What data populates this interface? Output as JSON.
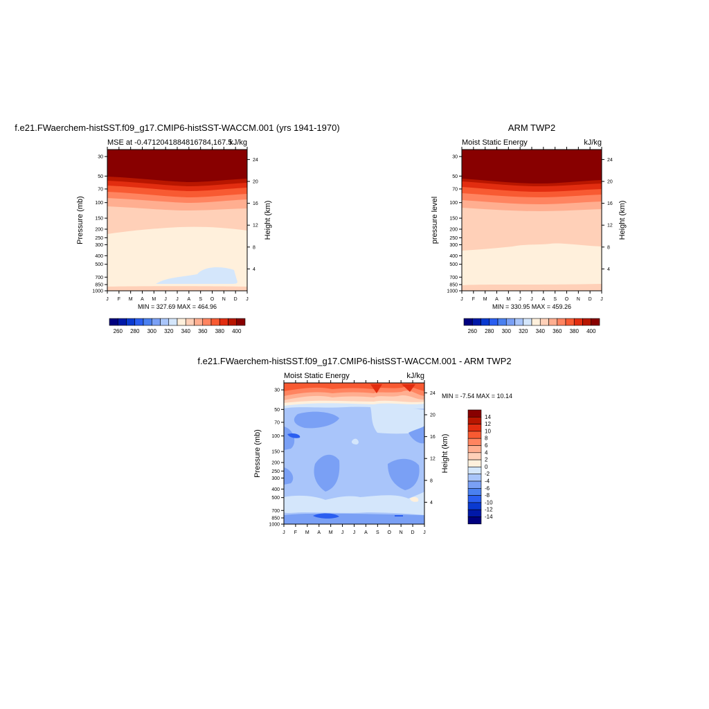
{
  "colors": {
    "mse_palette": [
      "#00007f",
      "#0018a8",
      "#0a3ad0",
      "#2a5ef0",
      "#4a80f0",
      "#7aa0f5",
      "#a9c5fa",
      "#d4e6fb",
      "#fff0dc",
      "#ffd0b8",
      "#ffae90",
      "#ff8460",
      "#f85a32",
      "#e22d10",
      "#b81600",
      "#880000"
    ],
    "diff_palette": [
      "#00007f",
      "#0018a8",
      "#0a3ad0",
      "#2a5ef0",
      "#4a80f0",
      "#7aa0f5",
      "#a9c5fa",
      "#d4e6fb",
      "#fff0dc",
      "#ffd0b8",
      "#ffae90",
      "#ff8460",
      "#f85a32",
      "#e22d10",
      "#b81600",
      "#880000"
    ]
  },
  "chart_data": [
    {
      "type": "heatmap",
      "title": "f.e21.FWaerchem-histSST.f09_g17.CMIP6-histSST-WACCM.001 (yrs 1941-1970)",
      "left_label": "MSE at -0.4712041884816784,167.5",
      "right_label": "kJ/kg",
      "ylabel": "Pressure (mb)",
      "y2label": "Height (km)",
      "x_ticks": [
        "J",
        "F",
        "M",
        "A",
        "M",
        "J",
        "J",
        "A",
        "S",
        "O",
        "N",
        "D",
        "J"
      ],
      "pressure_ticks": [
        "30",
        "50",
        "70",
        "100",
        "150",
        "200",
        "250",
        "300",
        "400",
        "500",
        "700",
        "850",
        "1000"
      ],
      "height_ticks": [
        "24",
        "20",
        "16",
        "12",
        "8",
        "4"
      ],
      "stats": "MIN = 327.69 MAX = 464.96",
      "z_range": [
        327.69,
        464.96
      ],
      "colorbar_ticks": [
        "260",
        "280",
        "300",
        "320",
        "340",
        "360",
        "380",
        "400"
      ],
      "colorbar_levels": [
        255,
        260,
        265,
        270,
        275,
        280,
        285,
        290,
        295,
        300,
        305,
        310,
        315,
        320,
        325,
        330,
        335,
        340,
        345,
        350,
        355,
        360,
        365,
        370,
        375,
        380,
        385,
        390,
        395,
        400,
        405
      ]
    },
    {
      "type": "heatmap",
      "title": "ARM TWP2",
      "left_label": "Moist Static Energy",
      "right_label": "kJ/kg",
      "ylabel": "pressure level",
      "y2label": "Height (km)",
      "x_ticks": [
        "J",
        "F",
        "M",
        "A",
        "M",
        "J",
        "J",
        "A",
        "S",
        "O",
        "N",
        "D",
        "J"
      ],
      "pressure_ticks": [
        "30",
        "50",
        "70",
        "100",
        "150",
        "200",
        "250",
        "300",
        "400",
        "500",
        "700",
        "850",
        "1000"
      ],
      "height_ticks": [
        "24",
        "20",
        "16",
        "12",
        "8",
        "4"
      ],
      "stats": "MIN = 330.95 MAX = 459.26",
      "z_range": [
        330.95,
        459.26
      ],
      "colorbar_ticks": [
        "260",
        "280",
        "300",
        "320",
        "340",
        "360",
        "380",
        "400"
      ]
    },
    {
      "type": "heatmap",
      "title": "f.e21.FWaerchem-histSST.f09_g17.CMIP6-histSST-WACCM.001 - ARM TWP2",
      "left_label": "Moist Static Energy",
      "right_label": "kJ/kg",
      "ylabel": "Pressure (mb)",
      "y2label": "Height (km)",
      "x_ticks": [
        "J",
        "F",
        "M",
        "A",
        "M",
        "J",
        "J",
        "A",
        "S",
        "O",
        "N",
        "D",
        "J"
      ],
      "pressure_ticks": [
        "30",
        "50",
        "70",
        "100",
        "150",
        "200",
        "250",
        "300",
        "400",
        "500",
        "700",
        "850",
        "1000"
      ],
      "height_ticks": [
        "24",
        "20",
        "16",
        "12",
        "8",
        "4"
      ],
      "stats": "MIN =  -7.54 MAX =  10.14",
      "z_range": [
        -7.54,
        10.14
      ],
      "colorbar_ticks": [
        "14",
        "12",
        "10",
        "8",
        "6",
        "4",
        "2",
        "0",
        "-2",
        "-4",
        "-6",
        "-8",
        "-10",
        "-12",
        "-14"
      ]
    }
  ]
}
